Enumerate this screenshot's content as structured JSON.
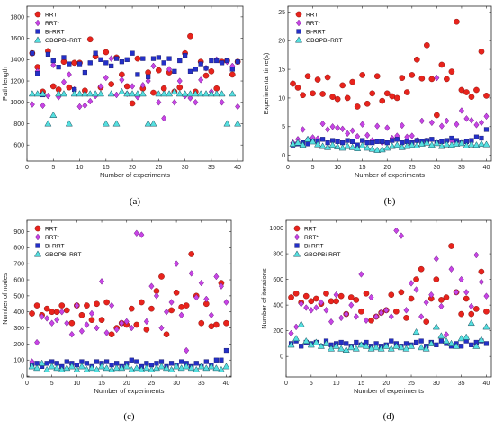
{
  "colors": {
    "rrt": "#e8231c",
    "rrt_star": "#c844e6",
    "bi_rrt": "#2430c8",
    "gbopbi_rrt": "#55e0e0"
  },
  "chart_data": [
    {
      "id": "a",
      "type": "scatter",
      "panel_label": "(a)",
      "xlabel": "Number of experiments",
      "ylabel": "Path length",
      "xlim": [
        0,
        41
      ],
      "ylim": [
        450,
        1900
      ],
      "xticks": [
        0,
        5,
        10,
        15,
        20,
        25,
        30,
        35,
        40
      ],
      "yticks": [
        600,
        800,
        1000,
        1200,
        1400,
        1600,
        1800
      ],
      "legend": "top-left",
      "series": [
        {
          "name": "RRT",
          "marker": "circle",
          "values": [
            1460,
            1330,
            1100,
            1480,
            1150,
            1120,
            1380,
            1140,
            1370,
            1370,
            1110,
            1590,
            1430,
            1140,
            1470,
            1170,
            1420,
            1260,
            1150,
            990,
            1410,
            1130,
            1280,
            1090,
            1300,
            1130,
            1280,
            1100,
            1140,
            1460,
            1620,
            1100,
            1380,
            1250,
            1290,
            1130,
            1380,
            1390,
            1260,
            1380
          ]
        },
        {
          "name": "RRT*",
          "marker": "diamond",
          "values": [
            980,
            1290,
            970,
            1060,
            1350,
            1050,
            1190,
            1260,
            1120,
            960,
            970,
            1010,
            1060,
            1150,
            1230,
            1410,
            1070,
            1210,
            1080,
            1150,
            1050,
            1160,
            1200,
            1340,
            1000,
            850,
            1310,
            1000,
            1200,
            1060,
            1040,
            1000,
            1210,
            1320,
            1100,
            1400,
            1000,
            1380,
            1340,
            960
          ]
        },
        {
          "name": "Bi-RRT",
          "marker": "square",
          "values": [
            1460,
            1270,
            1070,
            1450,
            1390,
            1330,
            1420,
            1360,
            1120,
            1360,
            1280,
            1370,
            1460,
            1400,
            1370,
            1340,
            1410,
            1380,
            1400,
            1460,
            1260,
            1410,
            1240,
            1410,
            1420,
            1370,
            1410,
            1290,
            1390,
            1440,
            1290,
            1310,
            1360,
            1320,
            1390,
            1390,
            1370,
            1390,
            1310,
            1380
          ]
        },
        {
          "name": "GBOPBi-RRT",
          "marker": "triangle",
          "values": [
            1080,
            1080,
            1080,
            800,
            880,
            1080,
            1080,
            800,
            1080,
            1080,
            1080,
            1080,
            1080,
            1080,
            800,
            1080,
            800,
            1100,
            1080,
            1080,
            1080,
            1080,
            800,
            800,
            1080,
            1080,
            1080,
            1100,
            1080,
            1080,
            1080,
            1080,
            1080,
            1080,
            1080,
            1080,
            1080,
            800,
            1080,
            800
          ]
        }
      ]
    },
    {
      "id": "b",
      "type": "scatter",
      "panel_label": "(b)",
      "xlabel": "Number of experiments",
      "ylabel": "Experimental time(s)",
      "xlim": [
        0,
        41
      ],
      "ylim": [
        -1,
        26
      ],
      "xticks": [
        0,
        5,
        10,
        15,
        20,
        25,
        30,
        35,
        40
      ],
      "yticks": [
        0,
        5,
        10,
        15,
        20,
        25
      ],
      "legend": "top-left",
      "series": [
        {
          "name": "RRT",
          "marker": "circle",
          "values": [
            12.5,
            11.8,
            10.5,
            13.8,
            10.8,
            13.2,
            10.7,
            13.6,
            10.2,
            9.8,
            12.2,
            10.0,
            12.8,
            8.5,
            14.0,
            9.0,
            10.8,
            13.8,
            9.5,
            10.8,
            10.3,
            10.0,
            13.5,
            11.0,
            14.0,
            16.7,
            13.4,
            19.2,
            13.3,
            7.0,
            15.8,
            13.3,
            14.6,
            23.3,
            11.4,
            11.0,
            10.2,
            11.4,
            18.1,
            10.4
          ]
        },
        {
          "name": "RRT*",
          "marker": "diamond",
          "values": [
            2.2,
            2.8,
            4.5,
            2.8,
            3.1,
            2.9,
            5.5,
            4.5,
            5.0,
            4.8,
            4.6,
            3.8,
            4.3,
            3.3,
            5.4,
            3.5,
            2.6,
            5.1,
            2.2,
            4.8,
            3.0,
            3.4,
            5.2,
            3.2,
            3.4,
            2.6,
            6.0,
            2.6,
            5.7,
            13.5,
            5.1,
            6.0,
            2.5,
            5.4,
            7.8,
            6.4,
            6.1,
            5.3,
            5.7,
            6.8
          ]
        },
        {
          "name": "Bi-RRT",
          "marker": "square",
          "values": [
            1.8,
            2.0,
            2.2,
            2.0,
            2.5,
            2.4,
            2.8,
            2.2,
            2.6,
            2.4,
            2.2,
            2.6,
            2.4,
            1.8,
            2.6,
            2.2,
            2.2,
            2.4,
            2.4,
            2.2,
            2.6,
            2.8,
            2.2,
            2.4,
            2.2,
            2.6,
            2.4,
            2.6,
            2.8,
            2.2,
            2.4,
            2.6,
            3.0,
            2.6,
            2.2,
            2.4,
            2.6,
            3.2,
            3.0,
            4.5
          ]
        },
        {
          "name": "GBOPBi-RRT",
          "marker": "triangle",
          "values": [
            2.0,
            2.2,
            1.8,
            2.8,
            2.4,
            1.9,
            1.6,
            1.4,
            1.8,
            1.5,
            1.3,
            1.6,
            1.4,
            1.2,
            1.7,
            1.3,
            1.1,
            0.9,
            1.0,
            1.3,
            1.6,
            1.8,
            1.4,
            1.6,
            1.8,
            1.7,
            2.0,
            2.2,
            1.8,
            2.1,
            1.6,
            1.9,
            1.8,
            2.0,
            2.1,
            1.7,
            1.9,
            1.8,
            2.0,
            1.9
          ]
        }
      ]
    },
    {
      "id": "c",
      "type": "scatter",
      "panel_label": "(c)",
      "xlabel": "Number of experiments",
      "ylabel": "Number of nodes",
      "xlim": [
        0,
        41
      ],
      "ylim": [
        -5,
        970
      ],
      "xticks": [
        0,
        5,
        10,
        15,
        20,
        25,
        30,
        35,
        40
      ],
      "yticks": [
        0,
        100,
        200,
        300,
        400,
        500,
        600,
        700,
        800,
        900
      ],
      "legend": "top-left",
      "series": [
        {
          "name": "RRT",
          "marker": "circle",
          "values": [
            390,
            440,
            380,
            420,
            400,
            400,
            440,
            410,
            330,
            440,
            380,
            440,
            350,
            450,
            350,
            460,
            260,
            300,
            330,
            320,
            420,
            320,
            460,
            290,
            420,
            530,
            620,
            260,
            410,
            520,
            430,
            440,
            760,
            500,
            330,
            450,
            310,
            320,
            580,
            330
          ]
        },
        {
          "name": "RRT*",
          "marker": "diamond",
          "values": [
            90,
            210,
            370,
            360,
            330,
            350,
            400,
            330,
            260,
            440,
            280,
            320,
            390,
            300,
            590,
            270,
            440,
            290,
            330,
            340,
            300,
            890,
            880,
            340,
            560,
            500,
            300,
            400,
            460,
            700,
            380,
            160,
            640,
            490,
            580,
            480,
            380,
            620,
            560,
            460
          ]
        },
        {
          "name": "Bi-RRT",
          "marker": "square",
          "values": [
            70,
            80,
            60,
            80,
            90,
            80,
            60,
            90,
            80,
            70,
            90,
            80,
            60,
            90,
            80,
            90,
            70,
            80,
            60,
            80,
            100,
            90,
            60,
            80,
            70,
            80,
            90,
            60,
            80,
            70,
            90,
            80,
            60,
            80,
            60,
            90,
            70,
            100,
            100,
            160
          ]
        },
        {
          "name": "GBOPBi-RRT",
          "marker": "triangle",
          "values": [
            60,
            50,
            80,
            40,
            60,
            50,
            40,
            50,
            60,
            40,
            60,
            40,
            50,
            40,
            60,
            50,
            40,
            50,
            50,
            60,
            40,
            50,
            40,
            50,
            40,
            50,
            60,
            50,
            40,
            60,
            50,
            60,
            50,
            40,
            60,
            50,
            60,
            50,
            40,
            60
          ]
        }
      ]
    },
    {
      "id": "d",
      "type": "scatter",
      "panel_label": "(d)",
      "xlabel": "Number of experiments",
      "ylabel": "Number of iterations",
      "xlim": [
        0,
        41
      ],
      "ylim": [
        -160,
        1060
      ],
      "xticks": [
        0,
        5,
        10,
        15,
        20,
        25,
        30,
        35,
        40
      ],
      "yticks": [
        0,
        200,
        400,
        600,
        800,
        1000
      ],
      "legend": "top-left",
      "series": [
        {
          "name": "RRT",
          "marker": "circle",
          "values": [
            460,
            490,
            420,
            470,
            430,
            450,
            410,
            490,
            430,
            430,
            470,
            330,
            460,
            440,
            350,
            490,
            280,
            310,
            340,
            360,
            480,
            350,
            500,
            300,
            450,
            600,
            680,
            270,
            450,
            600,
            440,
            460,
            860,
            500,
            330,
            450,
            330,
            370,
            660,
            350
          ]
        },
        {
          "name": "RRT*",
          "marker": "diamond",
          "values": [
            180,
            230,
            410,
            380,
            360,
            380,
            420,
            360,
            270,
            480,
            300,
            330,
            400,
            310,
            640,
            280,
            460,
            310,
            340,
            360,
            310,
            980,
            940,
            360,
            570,
            520,
            310,
            420,
            480,
            760,
            390,
            170,
            680,
            500,
            600,
            500,
            390,
            790,
            580,
            470
          ]
        },
        {
          "name": "Bi-RRT",
          "marker": "square",
          "values": [
            100,
            120,
            80,
            110,
            100,
            110,
            80,
            120,
            90,
            100,
            110,
            100,
            80,
            110,
            90,
            110,
            80,
            100,
            80,
            90,
            120,
            100,
            80,
            100,
            90,
            110,
            120,
            80,
            110,
            90,
            120,
            100,
            80,
            100,
            80,
            120,
            90,
            110,
            120,
            100
          ]
        },
        {
          "name": "GBOPBi-RRT",
          "marker": "triangle",
          "values": [
            90,
            140,
            250,
            120,
            90,
            110,
            80,
            100,
            60,
            80,
            60,
            50,
            70,
            60,
            90,
            80,
            60,
            70,
            60,
            80,
            60,
            80,
            70,
            60,
            80,
            190,
            70,
            60,
            100,
            230,
            160,
            120,
            100,
            80,
            140,
            150,
            260,
            80,
            130,
            230
          ]
        }
      ]
    }
  ]
}
